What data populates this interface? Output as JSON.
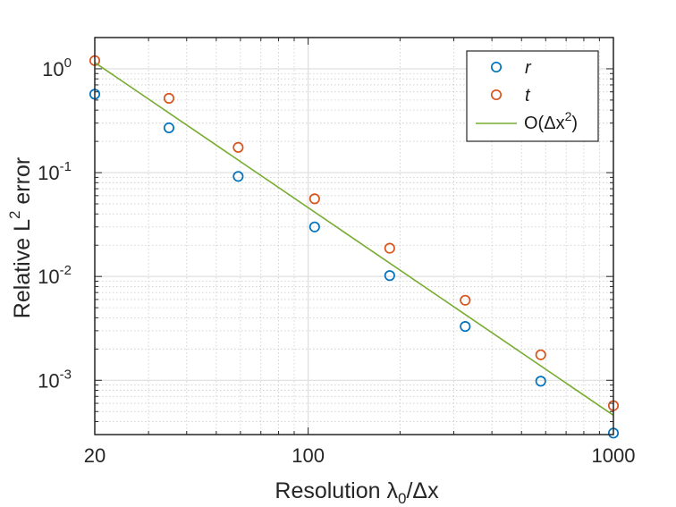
{
  "chart_data": {
    "type": "scatter",
    "xscale": "log",
    "yscale": "log",
    "xlim": [
      20,
      1000
    ],
    "ylim": [
      0.0003,
      2
    ],
    "xticks": [
      {
        "value": 20,
        "label": "20"
      },
      {
        "value": 100,
        "label": "100"
      },
      {
        "value": 1000,
        "label": "1000"
      }
    ],
    "yticks": [
      {
        "value": 0.001,
        "base": "10",
        "exp": "-3"
      },
      {
        "value": 0.01,
        "base": "10",
        "exp": "-2"
      },
      {
        "value": 0.1,
        "base": "10",
        "exp": "-1"
      },
      {
        "value": 1,
        "base": "10",
        "exp": "0"
      }
    ],
    "xlabel": {
      "text": "Resolution  λ",
      "sub": "0",
      "rest": "/Δx"
    },
    "ylabel": {
      "text": "Relative  L",
      "sup": "2",
      "rest": "  error"
    },
    "grid": true,
    "legend_position": "top-right",
    "series": [
      {
        "name": "r",
        "marker": "circle",
        "color": "#0072BD",
        "x": [
          20,
          35,
          59,
          105,
          185,
          327,
          578,
          1000
        ],
        "y": [
          0.57,
          0.27,
          0.092,
          0.03,
          0.0102,
          0.0033,
          0.00098,
          0.00031
        ]
      },
      {
        "name": "t",
        "marker": "circle",
        "color": "#D95319",
        "x": [
          20,
          35,
          59,
          105,
          185,
          327,
          578,
          1000
        ],
        "y": [
          1.2,
          0.52,
          0.175,
          0.056,
          0.0187,
          0.0059,
          0.00176,
          0.00057
        ]
      },
      {
        "name": "O(Δx²)",
        "label": {
          "text": "O(Δx",
          "sup": "2",
          "rest": ")"
        },
        "line": true,
        "color": "#77AC30",
        "x": [
          20,
          1000
        ],
        "y": [
          1.15,
          0.00046
        ]
      }
    ]
  }
}
